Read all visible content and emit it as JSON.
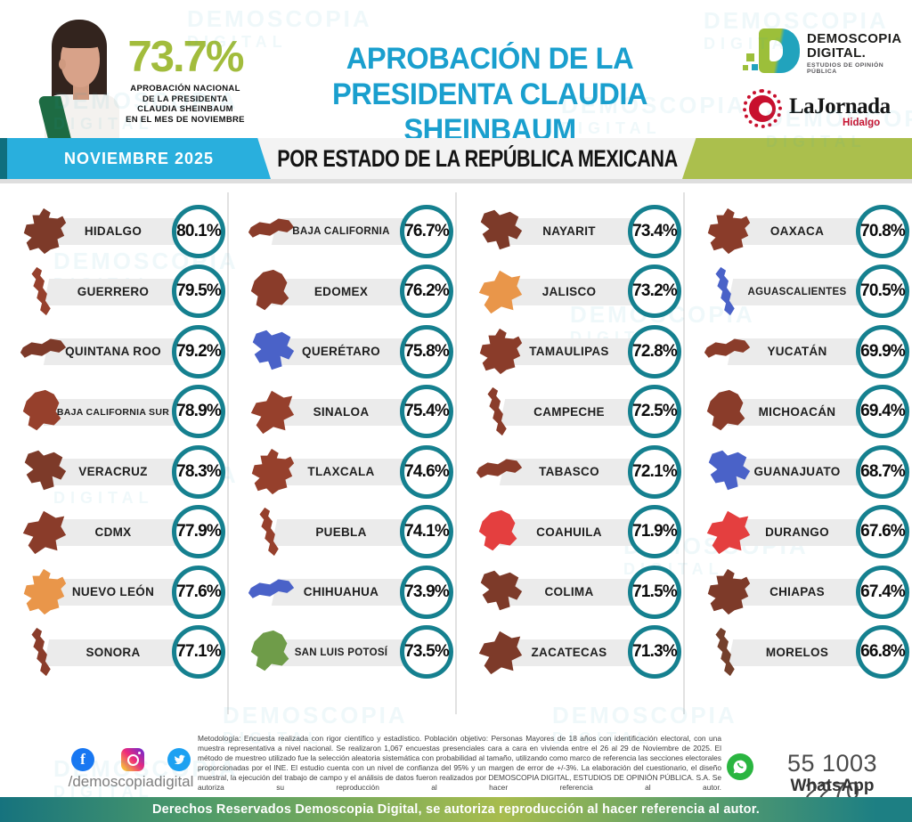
{
  "header": {
    "national_approval": "73.7%",
    "national_caption_lines": [
      "APROBACIÓN NACIONAL",
      "DE LA PRESIDENTA",
      "CLAUDIA SHEINBAUM",
      "EN EL MES DE NOVIEMBRE"
    ],
    "title_line1": "APROBACIÓN DE LA",
    "title_line2": "PRESIDENTA CLAUDIA SHEINBAUM",
    "brand": {
      "name_line1": "DEMOSCOPIA",
      "name_line2": "DIGITAL.",
      "tagline": "ESTUDIOS DE OPINIÓN PÚBLICA"
    },
    "partner": {
      "name": "LaJornada",
      "region": "Hidalgo"
    }
  },
  "band": {
    "period": "NOVIEMBRE 2025",
    "subtitle": "POR ESTADO DE LA REPÚBLICA MEXICANA"
  },
  "watermark": {
    "line1": "DEMOSCOPIA",
    "line2": "DIGITAL"
  },
  "chart_data": {
    "type": "table",
    "title": "APROBACIÓN DE LA PRESIDENTA CLAUDIA SHEINBAUM",
    "subtitle": "POR ESTADO DE LA REPÚBLICA MEXICANA",
    "period": "NOVIEMBRE 2025",
    "national_value": 73.7,
    "unit": "%",
    "value_range": [
      66.8,
      80.1
    ],
    "columns": [
      [
        {
          "name": "HIDALGO",
          "value": 80.1,
          "color": "#7d3a29"
        },
        {
          "name": "GUERRERO",
          "value": 79.5,
          "color": "#96402c"
        },
        {
          "name": "QUINTANA ROO",
          "value": 79.2,
          "color": "#7d3a29"
        },
        {
          "name": "BAJA CALIFORNIA SUR",
          "value": 78.9,
          "color": "#96402c"
        },
        {
          "name": "VERACRUZ",
          "value": 78.3,
          "color": "#7d3a29"
        },
        {
          "name": "CDMX",
          "value": 77.9,
          "color": "#8a3c2a"
        },
        {
          "name": "NUEVO LEÓN",
          "value": 77.6,
          "color": "#e9964a"
        },
        {
          "name": "SONORA",
          "value": 77.1,
          "color": "#8a3c2a"
        }
      ],
      [
        {
          "name": "BAJA CALIFORNIA",
          "value": 76.7,
          "color": "#8a3c2a"
        },
        {
          "name": "EDOMEX",
          "value": 76.2,
          "color": "#8a3c2a"
        },
        {
          "name": "QUERÉTARO",
          "value": 75.8,
          "color": "#4a62c8"
        },
        {
          "name": "SINALOA",
          "value": 75.4,
          "color": "#96402c"
        },
        {
          "name": "TLAXCALA",
          "value": 74.6,
          "color": "#96402c"
        },
        {
          "name": "PUEBLA",
          "value": 74.1,
          "color": "#96402c"
        },
        {
          "name": "CHIHUAHUA",
          "value": 73.9,
          "color": "#4a62c8"
        },
        {
          "name": "SAN LUIS POTOSÍ",
          "value": 73.5,
          "color": "#6f9c49"
        }
      ],
      [
        {
          "name": "NAYARIT",
          "value": 73.4,
          "color": "#7d3a29"
        },
        {
          "name": "JALISCO",
          "value": 73.2,
          "color": "#e9964a"
        },
        {
          "name": "TAMAULIPAS",
          "value": 72.8,
          "color": "#8a3c2a"
        },
        {
          "name": "CAMPECHE",
          "value": 72.5,
          "color": "#8a3c2a"
        },
        {
          "name": "TABASCO",
          "value": 72.1,
          "color": "#8a3c2a"
        },
        {
          "name": "COAHUILA",
          "value": 71.9,
          "color": "#e43f3f"
        },
        {
          "name": "COLIMA",
          "value": 71.5,
          "color": "#7d3a29"
        },
        {
          "name": "ZACATECAS",
          "value": 71.3,
          "color": "#7d3a29"
        }
      ],
      [
        {
          "name": "OAXACA",
          "value": 70.8,
          "color": "#8a3c2a"
        },
        {
          "name": "AGUASCALIENTES",
          "value": 70.5,
          "color": "#4a62c8"
        },
        {
          "name": "YUCATÁN",
          "value": 69.9,
          "color": "#8a3c2a"
        },
        {
          "name": "MICHOACÁN",
          "value": 69.4,
          "color": "#8a3c2a"
        },
        {
          "name": "GUANAJUATO",
          "value": 68.7,
          "color": "#4a62c8"
        },
        {
          "name": "DURANGO",
          "value": 67.6,
          "color": "#e43f3f"
        },
        {
          "name": "CHIAPAS",
          "value": 67.4,
          "color": "#7d3a29"
        },
        {
          "name": "MORELOS",
          "value": 66.8,
          "color": "#74402c"
        }
      ]
    ],
    "legend_position": "none",
    "grid": false,
    "accent_colors": {
      "circle_ring": "#15808f",
      "band_cyan": "#29afdd",
      "band_olive": "#abbf4d",
      "title_blue": "#1a9fce",
      "approval_green": "#a2bc3c"
    }
  },
  "footer": {
    "social_handle": "/demoscopiadigital",
    "facebook_glyph": "f",
    "methodology": "Metodología: Encuesta realizada con rigor científico y estadístico. Población objetivo: Personas Mayores de 18 años con identificación electoral, con una muestra representativa a nivel nacional. Se realizaron 1,067 encuestas presenciales cara a cara en vivienda entre el 26 al 29 de Noviembre de 2025. El método de muestreo utilizado fue la selección aleatoria sistemática con probabilidad al tamaño, utilizando como marco de referencia las secciones electorales proporcionadas por el INE. El estudio cuenta con un nivel de confianza del 95% y un margen de error de +/-3%. La elaboración del cuestionario, el diseño muestral, la ejecución del trabajo de campo y el análisis de datos fueron realizados por DEMOSCOPIA DIGITAL, ESTUDIOS DE OPINIÓN PÚBLICA. S.A. Se autoriza su reproducción al hacer referencia al autor.",
    "whatsapp_number": "55 1003 2270",
    "whatsapp_label": "WhatsApp"
  },
  "bottom_bar": "Derechos Reservados Demoscopia Digital, se autoriza reproducción al hacer referencia al autor."
}
